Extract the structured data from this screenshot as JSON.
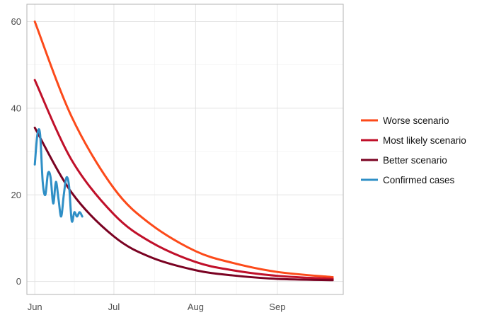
{
  "chart_data": {
    "type": "line",
    "title": "",
    "xlabel": "",
    "ylabel": "",
    "x_domain": [
      "2020-05-29",
      "2020-09-26"
    ],
    "ylim": [
      -3,
      64
    ],
    "x_ticks": [
      {
        "date": "2020-06-01",
        "label": "Jun"
      },
      {
        "date": "2020-07-01",
        "label": "Jul"
      },
      {
        "date": "2020-08-01",
        "label": "Aug"
      },
      {
        "date": "2020-09-01",
        "label": "Sep"
      }
    ],
    "y_ticks": [
      0,
      20,
      40,
      60
    ],
    "grid": true,
    "legend_position": "right",
    "series": [
      {
        "name": "Worse scenario",
        "color": "#fc4a1a",
        "x": [
          "2020-06-01",
          "2020-06-15",
          "2020-07-01",
          "2020-07-15",
          "2020-08-01",
          "2020-08-15",
          "2020-09-01",
          "2020-09-22"
        ],
        "y": [
          60,
          38,
          21.5,
          13.2,
          7,
          4.3,
          2.2,
          1.0
        ]
      },
      {
        "name": "Most likely scenario",
        "color": "#c0102a",
        "x": [
          "2020-06-01",
          "2020-06-15",
          "2020-07-01",
          "2020-07-15",
          "2020-08-01",
          "2020-08-15",
          "2020-09-01",
          "2020-09-22"
        ],
        "y": [
          46.5,
          28,
          15.5,
          9.1,
          4.5,
          2.6,
          1.3,
          0.6
        ]
      },
      {
        "name": "Better scenario",
        "color": "#7a0222",
        "x": [
          "2020-06-01",
          "2020-06-15",
          "2020-07-01",
          "2020-07-15",
          "2020-08-01",
          "2020-08-15",
          "2020-09-01",
          "2020-09-22"
        ],
        "y": [
          35.5,
          20.5,
          10.4,
          5.6,
          2.6,
          1.4,
          0.6,
          0.3
        ]
      },
      {
        "name": "Confirmed cases",
        "color": "#2f8fc6",
        "x": [
          "2020-06-01",
          "2020-06-02",
          "2020-06-03",
          "2020-06-04",
          "2020-06-05",
          "2020-06-06",
          "2020-06-07",
          "2020-06-08",
          "2020-06-09",
          "2020-06-10",
          "2020-06-11",
          "2020-06-12",
          "2020-06-13",
          "2020-06-14",
          "2020-06-15",
          "2020-06-16",
          "2020-06-17",
          "2020-06-18",
          "2020-06-19"
        ],
        "y": [
          27,
          34,
          34,
          23,
          20,
          25,
          24,
          18,
          23,
          19,
          15,
          20,
          24,
          22,
          14,
          16,
          15,
          16,
          15
        ]
      }
    ]
  }
}
